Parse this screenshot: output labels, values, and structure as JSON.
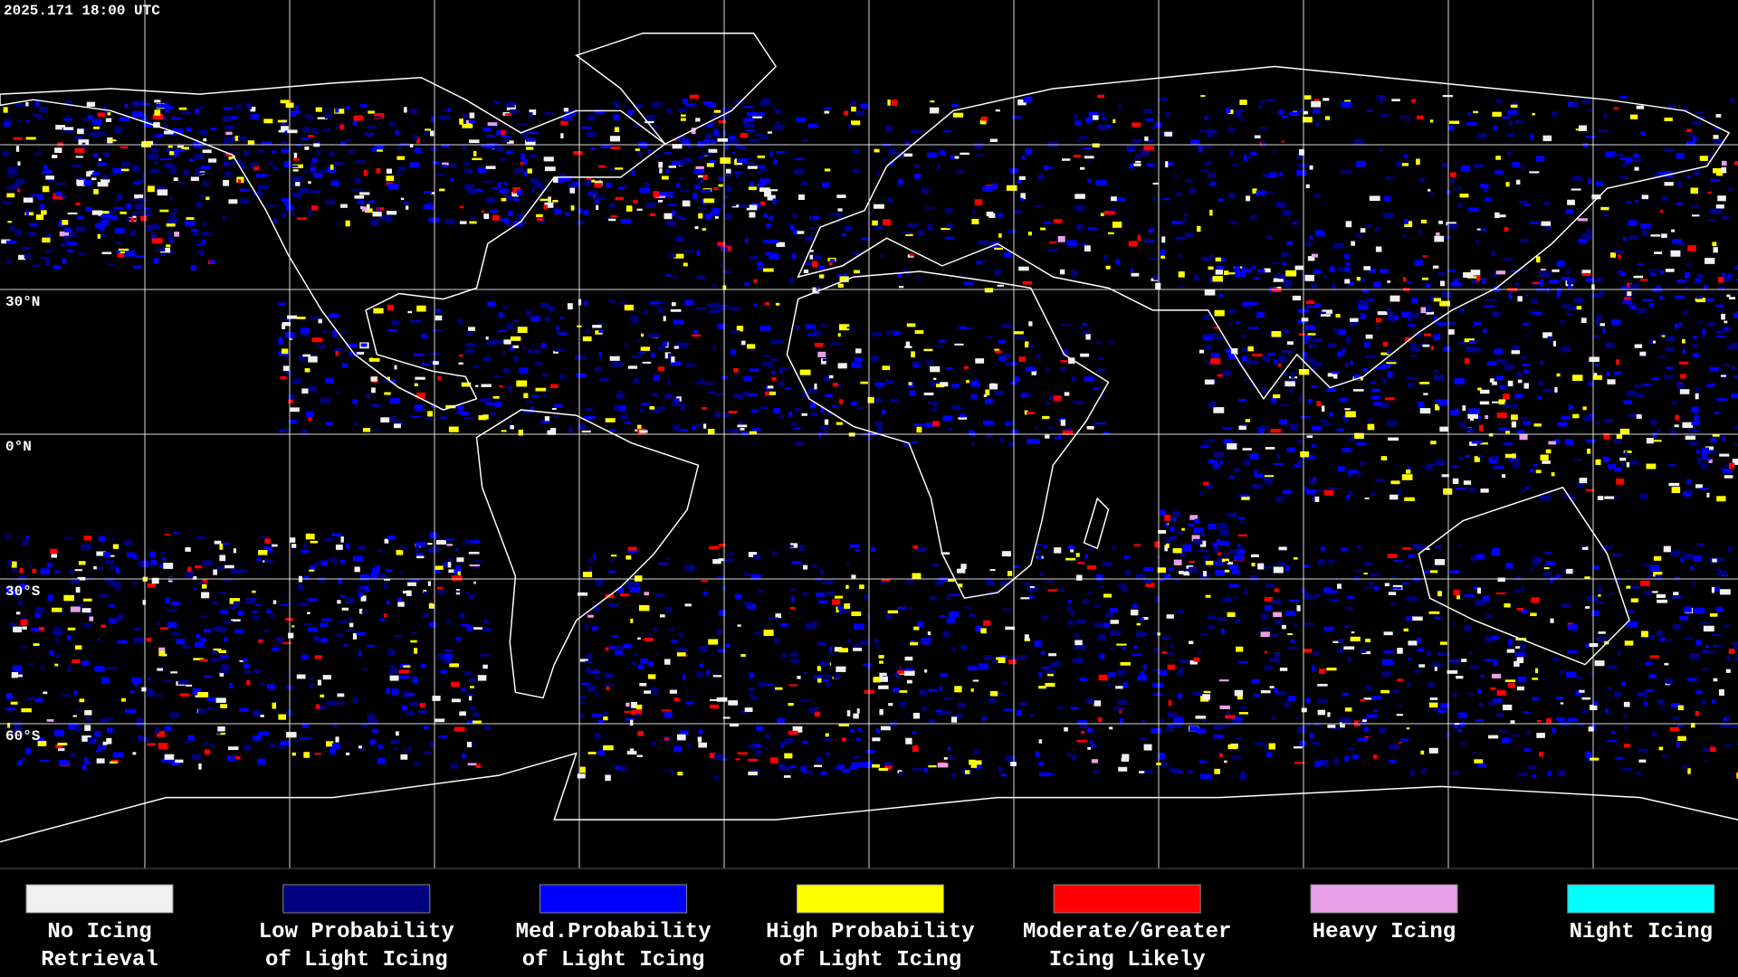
{
  "timestamp": "2025.171 18:00 UTC",
  "latitude_labels": [
    "30°N",
    "0°N",
    "30°S",
    "60°S"
  ],
  "legend": [
    {
      "lines": [
        "No Icing",
        "Retrieval"
      ],
      "color": "#f0f0f0"
    },
    {
      "lines": [
        "Low Probability",
        "of Light Icing"
      ],
      "color": "#000080"
    },
    {
      "lines": [
        "Med.Probability",
        "of Light Icing"
      ],
      "color": "#0000ff"
    },
    {
      "lines": [
        "High Probability",
        "of Light Icing"
      ],
      "color": "#ffff00"
    },
    {
      "lines": [
        "Moderate/Greater",
        "Icing Likely"
      ],
      "color": "#ff0000"
    },
    {
      "lines": [
        "Heavy Icing"
      ],
      "color": "#e8a0e8"
    },
    {
      "lines": [
        "Night Icing"
      ],
      "color": "#00ffff"
    }
  ]
}
